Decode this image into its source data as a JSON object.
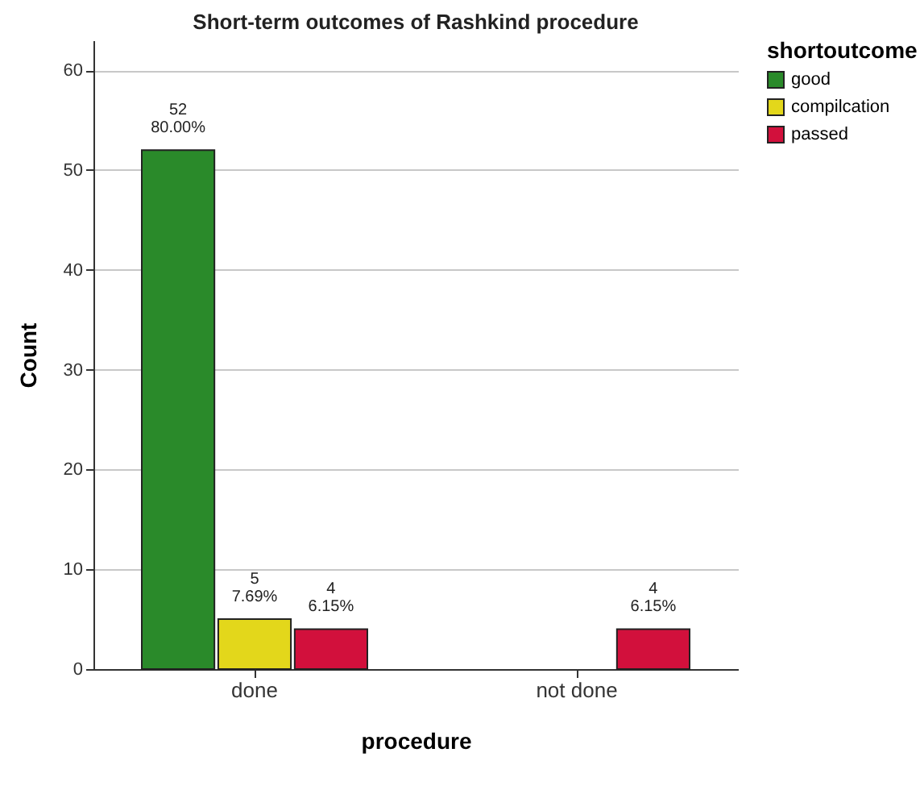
{
  "chart_data": {
    "type": "bar",
    "title": "Short-term outcomes of Rashkind procedure",
    "xlabel": "procedure",
    "ylabel": "Count",
    "legend_title": "shortoutcome",
    "categories": [
      "done",
      "not done"
    ],
    "series": [
      {
        "name": "good",
        "color": "#2a8a2a",
        "values": [
          52,
          null
        ],
        "value_labels": [
          "52\n80.00%",
          null
        ]
      },
      {
        "name": "compilcation",
        "color": "#e3d71b",
        "values": [
          5,
          null
        ],
        "value_labels": [
          "5\n7.69%",
          null
        ]
      },
      {
        "name": "passed",
        "color": "#d2103c",
        "values": [
          4,
          4
        ],
        "value_labels": [
          "4\n6.15%",
          "4\n6.15%"
        ]
      }
    ],
    "ylim": [
      0,
      63
    ],
    "yticks": [
      0,
      10,
      20,
      30,
      40,
      50,
      60
    ],
    "grid": "y",
    "legend": "right"
  }
}
